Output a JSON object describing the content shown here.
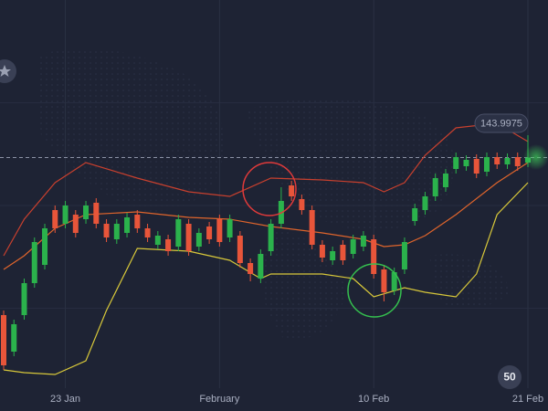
{
  "chart_data": {
    "type": "candlestick",
    "ylim": [
      143.72,
      144.17
    ],
    "categories": [
      null,
      null,
      null,
      null,
      null,
      null,
      "23 Jan",
      null,
      null,
      null,
      null,
      null,
      null,
      null,
      null,
      null,
      null,
      null,
      null,
      null,
      null,
      "February",
      null,
      null,
      null,
      null,
      null,
      null,
      null,
      null,
      null,
      null,
      null,
      null,
      null,
      null,
      "10 Feb",
      null,
      null,
      null,
      null,
      null,
      null,
      null,
      null,
      null,
      null,
      null,
      null,
      null,
      null,
      "21 Feb"
    ],
    "open": [
      143.825,
      143.785,
      143.825,
      143.86,
      143.88,
      143.94,
      143.925,
      143.935,
      143.93,
      143.948,
      143.925,
      143.908,
      143.915,
      143.935,
      143.92,
      143.902,
      143.908,
      143.9,
      143.925,
      143.9,
      143.922,
      143.93,
      143.91,
      143.912,
      143.882,
      143.865,
      143.895,
      143.925,
      143.967,
      143.952,
      143.94,
      143.902,
      143.885,
      143.902,
      143.892,
      143.9,
      143.908,
      143.875,
      143.852,
      143.875,
      143.928,
      143.94,
      143.955,
      143.965,
      143.985,
      143.988,
      143.996,
      143.982,
      143.998,
      143.99,
      143.998,
      143.992
    ],
    "high": [
      143.83,
      143.82,
      143.865,
      143.91,
      143.925,
      143.945,
      143.95,
      143.94,
      143.95,
      143.953,
      143.93,
      143.93,
      143.937,
      143.94,
      143.925,
      143.917,
      143.913,
      143.935,
      143.93,
      143.92,
      143.927,
      143.935,
      143.935,
      143.917,
      143.887,
      143.897,
      143.93,
      143.965,
      143.972,
      143.957,
      143.945,
      143.907,
      143.9,
      143.907,
      143.913,
      143.917,
      143.913,
      143.88,
      143.877,
      143.91,
      143.947,
      143.96,
      143.98,
      143.985,
      144.003,
      144.0,
      144.001,
      144.003,
      144.003,
      144.002,
      144.003,
      144.022
    ],
    "low": [
      143.765,
      143.78,
      143.82,
      143.855,
      143.875,
      143.915,
      143.92,
      143.91,
      143.925,
      143.92,
      143.905,
      143.903,
      143.91,
      143.915,
      143.905,
      143.897,
      143.89,
      143.895,
      143.89,
      143.895,
      143.903,
      143.9,
      143.905,
      143.877,
      143.862,
      143.86,
      143.89,
      143.92,
      143.95,
      143.935,
      143.897,
      143.883,
      143.88,
      143.88,
      143.887,
      143.895,
      143.865,
      143.84,
      143.847,
      143.87,
      143.923,
      143.935,
      143.95,
      143.96,
      143.98,
      143.983,
      143.975,
      143.977,
      143.985,
      143.985,
      143.983,
      143.987
    ],
    "close": [
      143.77,
      143.815,
      143.86,
      143.905,
      143.92,
      143.92,
      143.945,
      143.915,
      143.945,
      143.925,
      143.91,
      143.925,
      143.932,
      143.92,
      143.91,
      143.912,
      143.895,
      143.93,
      143.895,
      143.915,
      143.908,
      143.905,
      143.93,
      143.882,
      143.87,
      143.892,
      143.925,
      143.95,
      143.955,
      143.94,
      143.902,
      143.888,
      143.895,
      143.885,
      143.908,
      143.912,
      143.87,
      143.85,
      143.872,
      143.905,
      143.942,
      143.955,
      143.975,
      143.98,
      143.998,
      143.995,
      143.98,
      143.998,
      143.99,
      143.997,
      143.988,
      143.9975
    ],
    "up_color": "#2bb24c",
    "down_color": "#e8553a",
    "lines": [
      {
        "color": "#c8402e",
        "x": [
          0,
          2,
          5,
          8,
          13,
          18,
          22,
          26,
          31,
          35,
          37,
          39,
          41,
          44,
          48,
          51
        ],
        "values": [
          143.89,
          143.93,
          143.97,
          143.992,
          143.975,
          143.96,
          143.955,
          143.975,
          143.973,
          143.97,
          143.96,
          143.97,
          144.0,
          144.03,
          144.035,
          144.015
        ]
      },
      {
        "color": "#e0652c",
        "x": [
          0,
          2,
          5,
          8,
          13,
          18,
          22,
          26,
          31,
          35,
          37,
          39,
          41,
          44,
          48,
          51
        ],
        "values": [
          143.875,
          143.89,
          143.92,
          143.935,
          143.938,
          143.932,
          143.93,
          143.922,
          143.915,
          143.908,
          143.9,
          143.902,
          143.912,
          143.935,
          143.97,
          143.992
        ]
      },
      {
        "color": "#d8c83a",
        "x": [
          0,
          2,
          5,
          8,
          10,
          13,
          18,
          22,
          25,
          26,
          31,
          34,
          35,
          36,
          39,
          41,
          44,
          46,
          48,
          51
        ],
        "values": [
          143.765,
          143.762,
          143.76,
          143.775,
          143.83,
          143.898,
          143.895,
          143.885,
          143.865,
          143.87,
          143.87,
          143.865,
          143.855,
          143.845,
          143.855,
          143.85,
          143.845,
          143.87,
          143.935,
          143.97
        ]
      }
    ],
    "current_price": 143.9975,
    "badge": "50"
  }
}
